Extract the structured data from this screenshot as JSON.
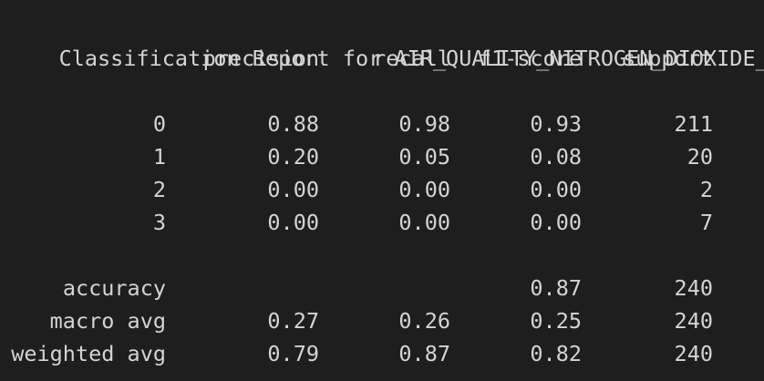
{
  "report": {
    "title": "Classification Report for AIR_QUALITY_NITROGEN_DIOXIDE_NM:",
    "headers": {
      "precision": "precision",
      "recall": "recall",
      "f1": "f1-score",
      "support": "support"
    },
    "rows": [
      {
        "label": "0",
        "precision": "0.88",
        "recall": "0.98",
        "f1": "0.93",
        "support": "211"
      },
      {
        "label": "1",
        "precision": "0.20",
        "recall": "0.05",
        "f1": "0.08",
        "support": "20"
      },
      {
        "label": "2",
        "precision": "0.00",
        "recall": "0.00",
        "f1": "0.00",
        "support": "2"
      },
      {
        "label": "3",
        "precision": "0.00",
        "recall": "0.00",
        "f1": "0.00",
        "support": "7"
      }
    ],
    "accuracy": {
      "label": "accuracy",
      "f1": "0.87",
      "support": "240"
    },
    "macro": {
      "label": "macro avg",
      "precision": "0.27",
      "recall": "0.26",
      "f1": "0.25",
      "support": "240"
    },
    "weighted": {
      "label": "weighted avg",
      "precision": "0.79",
      "recall": "0.87",
      "f1": "0.82",
      "support": "240"
    }
  }
}
